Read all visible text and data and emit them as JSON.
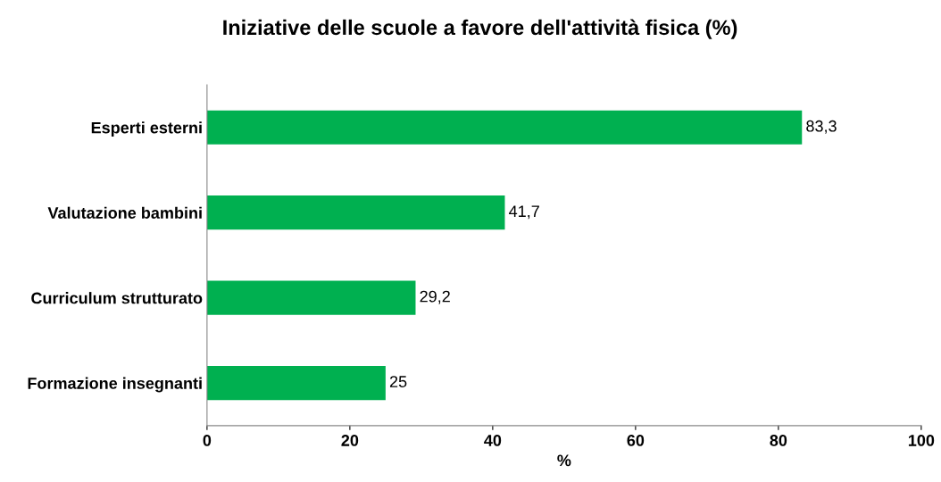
{
  "chart_data": {
    "type": "bar",
    "orientation": "horizontal",
    "title": "Iniziative delle scuole a favore dell'attività fisica (%)",
    "xlabel": "%",
    "categories": [
      "Esperti esterni",
      "Valutazione bambini",
      "Curriculum strutturato",
      "Formazione insegnanti"
    ],
    "values": [
      83.3,
      41.7,
      29.2,
      25
    ],
    "value_labels": [
      "83,3",
      "41,7",
      "29,2",
      "25"
    ],
    "color": "#00b050",
    "xlim": [
      0,
      100
    ],
    "xticks": [
      0,
      20,
      40,
      60,
      80,
      100
    ],
    "grid": false,
    "legend": false
  }
}
